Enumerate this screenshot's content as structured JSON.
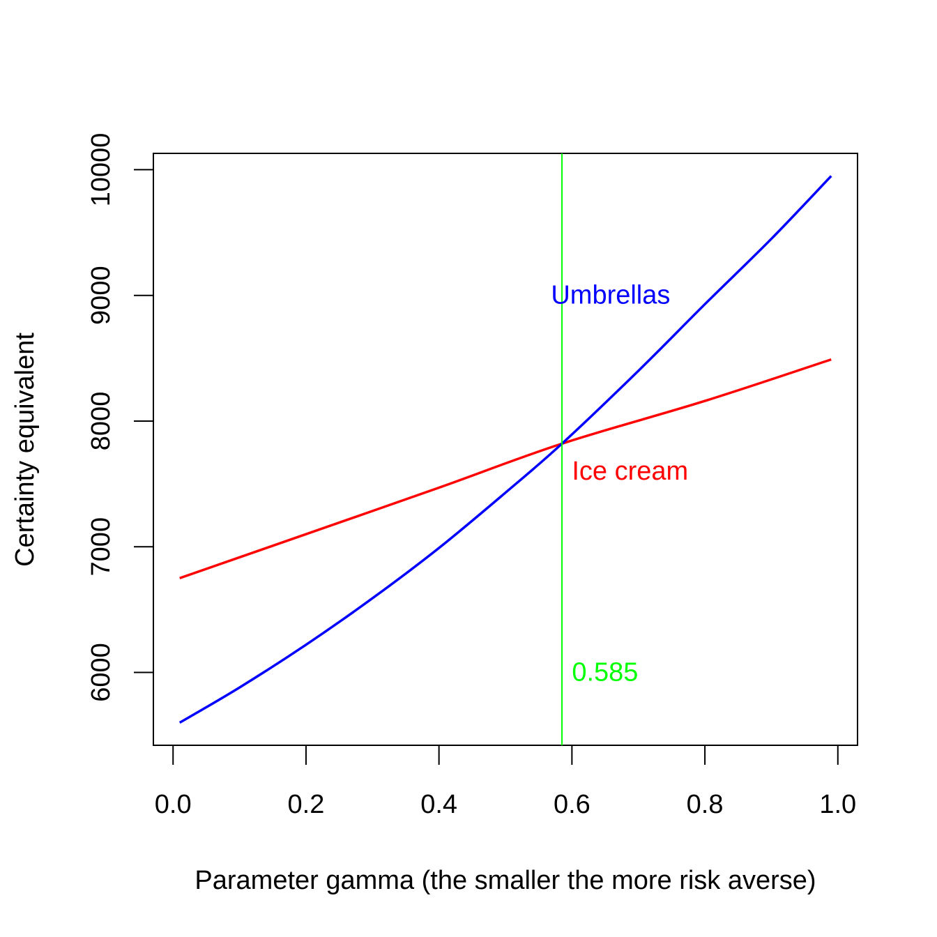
{
  "chart_data": {
    "type": "line",
    "title": "",
    "xlabel": "Parameter gamma (the smaller the more risk averse)",
    "ylabel": "Certainty equivalent",
    "xlim": [
      -0.0296,
      1.0296
    ],
    "ylim": [
      5420,
      10130
    ],
    "xticks": [
      0.0,
      0.2,
      0.4,
      0.6,
      0.8,
      1.0
    ],
    "xtick_labels": [
      "0.0",
      "0.2",
      "0.4",
      "0.6",
      "0.8",
      "1.0"
    ],
    "yticks": [
      6000,
      7000,
      8000,
      9000,
      10000
    ],
    "ytick_labels": [
      "6000",
      "7000",
      "8000",
      "9000",
      "10000"
    ],
    "grid": false,
    "legend": "none",
    "series": [
      {
        "name": "Umbrellas",
        "color": "#0000ff",
        "x": [
          0.01,
          0.1,
          0.2,
          0.3,
          0.4,
          0.5,
          0.585,
          0.7,
          0.8,
          0.9,
          0.99
        ],
        "y": [
          5600,
          5880,
          6220,
          6590,
          6990,
          7430,
          7820,
          8400,
          8930,
          9450,
          9950
        ]
      },
      {
        "name": "Ice cream",
        "color": "#ff0000",
        "x": [
          0.01,
          0.2,
          0.4,
          0.585,
          0.8,
          0.99
        ],
        "y": [
          6750,
          7100,
          7470,
          7820,
          8160,
          8490
        ]
      }
    ],
    "vline": {
      "x": 0.585,
      "color": "#00ff00"
    },
    "annotations": [
      {
        "text": "Umbrellas",
        "x": 0.6,
        "y": 8990,
        "color": "#0000ff"
      },
      {
        "text": "Ice cream",
        "x": 0.6,
        "y": 7590,
        "color": "#ff0000"
      },
      {
        "text": "0.585",
        "x": 0.6,
        "y": 5990,
        "color": "#00ff00"
      }
    ]
  }
}
